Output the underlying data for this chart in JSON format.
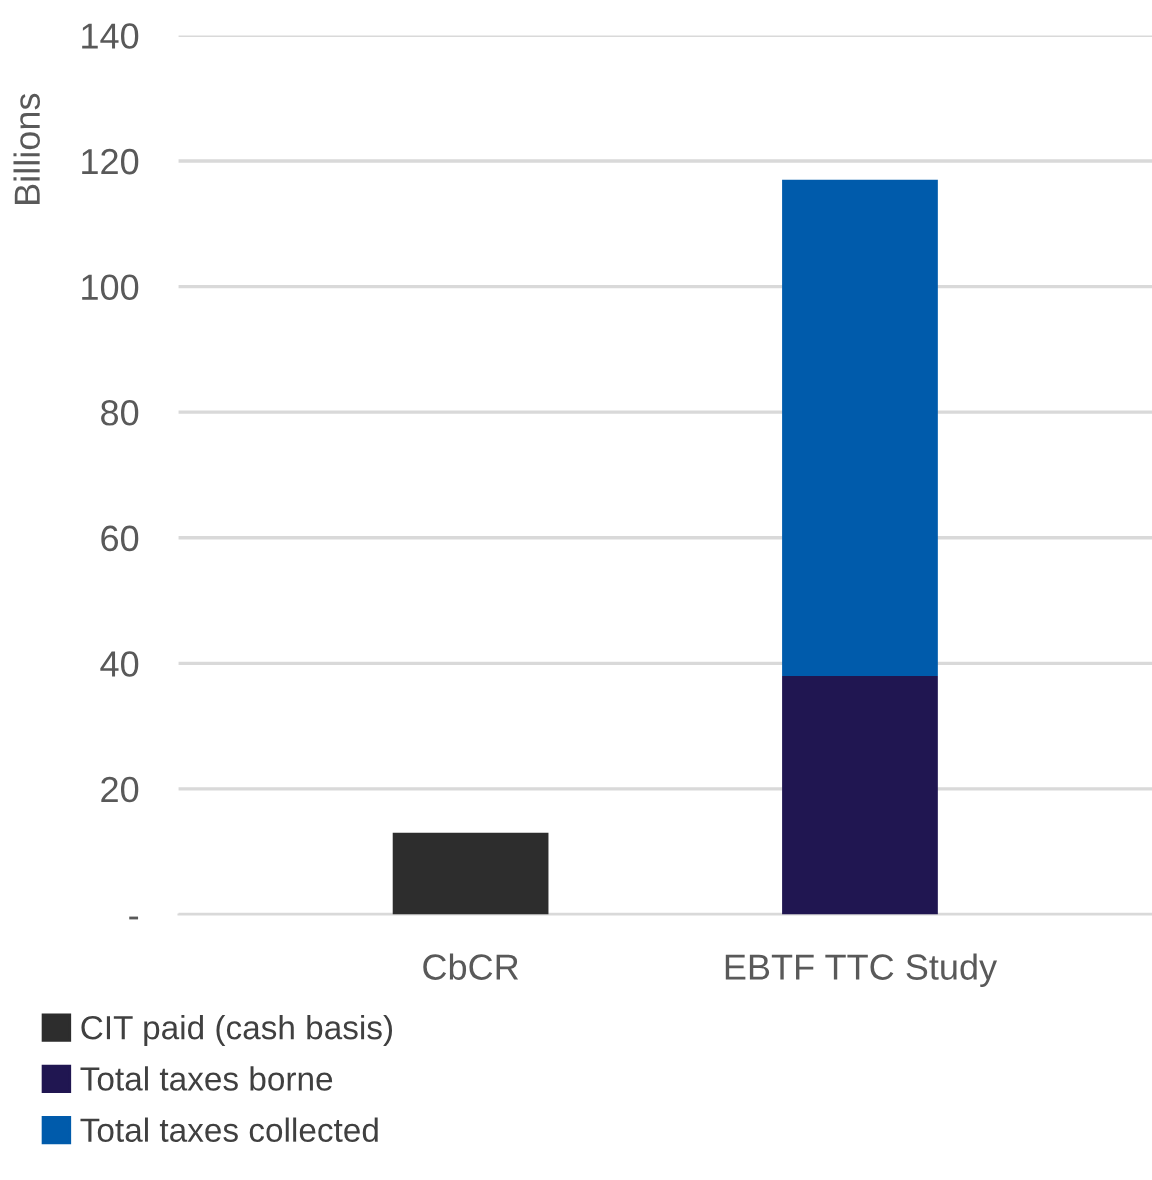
{
  "chart_data": {
    "type": "bar",
    "stacked": true,
    "ylabel": "Billions",
    "categories": [
      "CbCR",
      "EBTF TTC Study"
    ],
    "series": [
      {
        "name": "CIT paid (cash basis)",
        "color": "#2d2d2d",
        "values": [
          13,
          null
        ]
      },
      {
        "name": "Total taxes borne",
        "color": "#201651",
        "values": [
          null,
          38
        ]
      },
      {
        "name": "Total taxes collected",
        "color": "#005bab",
        "values": [
          null,
          79
        ]
      }
    ],
    "ylim": [
      0,
      140
    ],
    "yticks": [
      {
        "value": 0,
        "label": "-"
      },
      20,
      40,
      60,
      80,
      100,
      120,
      140
    ],
    "grid": "y",
    "legend": "bottom"
  }
}
